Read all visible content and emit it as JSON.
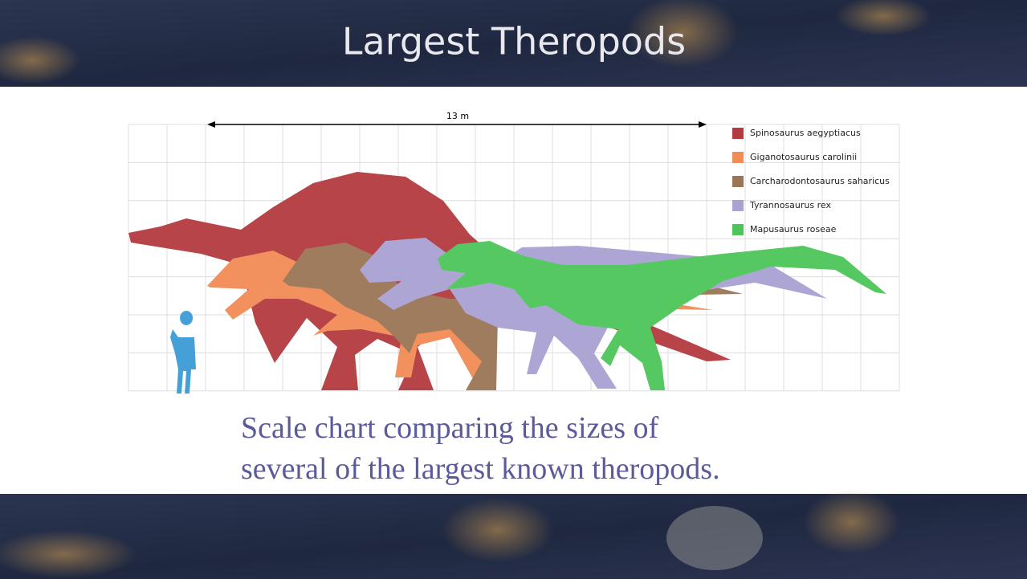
{
  "header": {
    "title": "Largest Theropods"
  },
  "figure": {
    "scale_label": "13 m",
    "legend": [
      {
        "name": "Spinosaurus aegyptiacus",
        "color": "#b33a3f"
      },
      {
        "name": "Giganotosaurus carolinii",
        "color": "#f28c55"
      },
      {
        "name": "Carcharodontosaurus saharicus",
        "color": "#9b7656"
      },
      {
        "name": "Tyrannosaurus rex",
        "color": "#a9a2d3"
      },
      {
        "name": "Mapusaurus roseae",
        "color": "#4cc65a"
      }
    ]
  },
  "caption": {
    "lines": [
      "Scale chart comparing the sizes of",
      "several of the largest known theropods."
    ]
  }
}
